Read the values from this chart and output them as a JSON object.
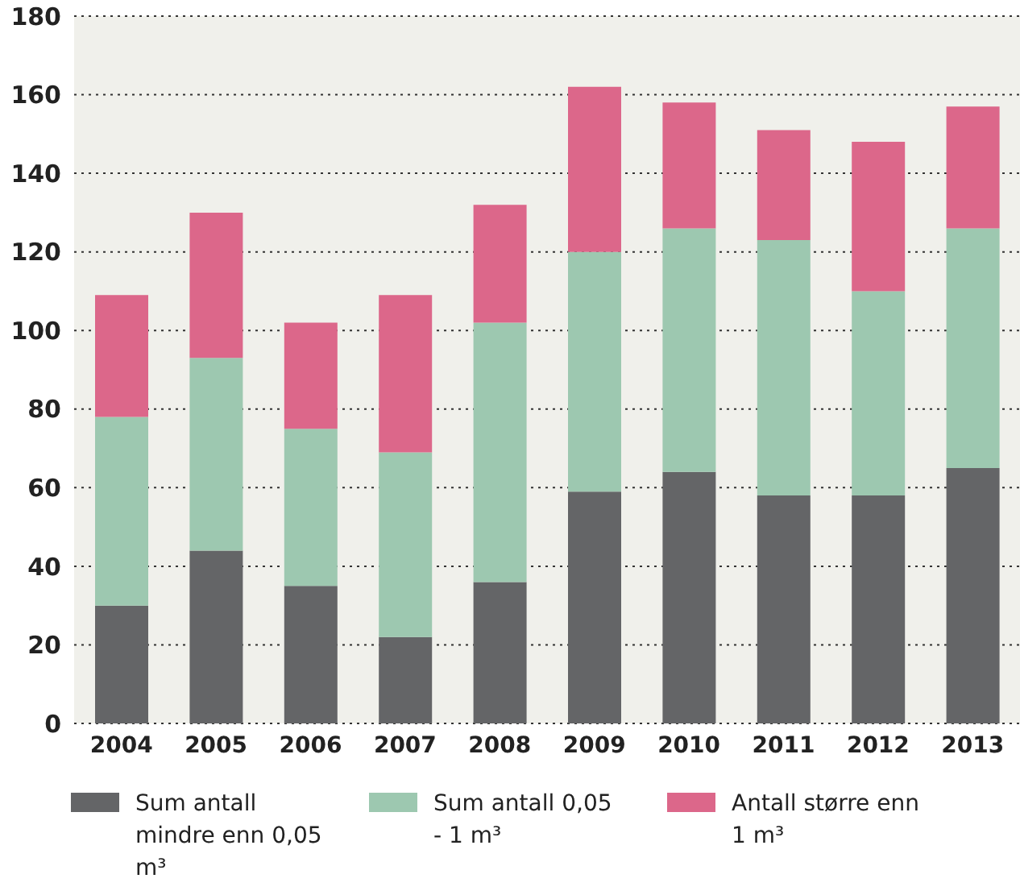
{
  "chart_data": {
    "type": "bar",
    "stacked": true,
    "categories": [
      "2004",
      "2005",
      "2006",
      "2007",
      "2008",
      "2009",
      "2010",
      "2011",
      "2012",
      "2013"
    ],
    "series": [
      {
        "name": "Sum antall mindre enn 0,05 m³",
        "color": "#646567",
        "values": [
          30,
          44,
          35,
          22,
          36,
          59,
          64,
          58,
          58,
          65
        ]
      },
      {
        "name": "Sum antall 0,05 - 1 m³",
        "color": "#9dc8b0",
        "values": [
          48,
          49,
          40,
          47,
          66,
          61,
          62,
          65,
          52,
          61
        ]
      },
      {
        "name": "Antall større enn 1 m³",
        "color": "#dc678a",
        "values": [
          31,
          37,
          27,
          40,
          30,
          42,
          32,
          28,
          38,
          31
        ]
      }
    ],
    "ylim": [
      0,
      180
    ],
    "yticks": [
      0,
      20,
      40,
      60,
      80,
      100,
      120,
      140,
      160,
      180
    ],
    "grid": "y",
    "legend": "bottom"
  }
}
